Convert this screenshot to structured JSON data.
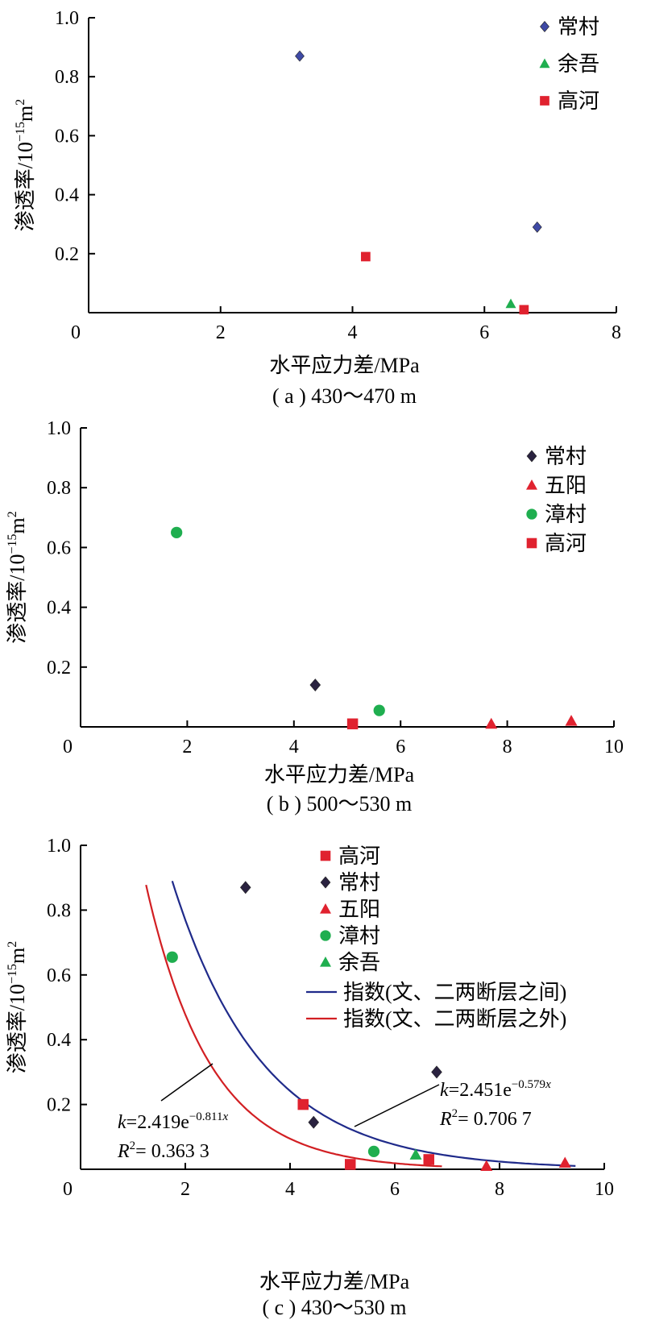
{
  "colors": {
    "changcun_a": "#3f4aa5",
    "changcun_dark": "#2a2240",
    "yuwu": "#1fae4f",
    "gaohe": "#e0222f",
    "wuyang": "#e0222f",
    "zhangcun": "#1fae4f",
    "fit_inside": "#1f2a8a",
    "fit_outside": "#d21f23"
  },
  "chart_data": [
    {
      "type": "scatter",
      "caption": "( a ) 430～470 m",
      "xlabel": "水平应力差/MPa",
      "ylabel": "渗透率/10",
      "ylabel_sup": "−15",
      "ylabel_unit": "m",
      "ylabel_unit_sup": "2",
      "xlim": [
        0,
        8
      ],
      "ylim": [
        0,
        1.0
      ],
      "xticks": [
        "0",
        "2",
        "4",
        "6",
        "8"
      ],
      "yticks": [
        "0.2",
        "0.4",
        "0.6",
        "0.8",
        "1.0"
      ],
      "legend_position": "top-right",
      "series": [
        {
          "name": "常村",
          "marker": "diamond",
          "color_key": "changcun_a",
          "points": [
            [
              3.2,
              0.87
            ],
            [
              6.8,
              0.29
            ]
          ]
        },
        {
          "name": "余吾",
          "marker": "triangle",
          "color_key": "yuwu",
          "points": [
            [
              6.4,
              0.03
            ]
          ]
        },
        {
          "name": "高河",
          "marker": "square",
          "color_key": "gaohe",
          "points": [
            [
              4.2,
              0.19
            ],
            [
              6.6,
              0.01
            ]
          ]
        }
      ]
    },
    {
      "type": "scatter",
      "caption": "( b ) 500～530 m",
      "xlabel": "水平应力差/MPa",
      "ylabel": "渗透率/10",
      "ylabel_sup": "−15",
      "ylabel_unit": "m",
      "ylabel_unit_sup": "2",
      "xlim": [
        0,
        10
      ],
      "ylim": [
        0,
        1.0
      ],
      "xticks": [
        "0",
        "2",
        "4",
        "6",
        "8",
        "10"
      ],
      "yticks": [
        "0.2",
        "0.4",
        "0.6",
        "0.8",
        "1.0"
      ],
      "legend_position": "top-right",
      "series": [
        {
          "name": "常村",
          "marker": "diamond",
          "color_key": "changcun_dark",
          "points": [
            [
              4.4,
              0.14
            ]
          ]
        },
        {
          "name": "五阳",
          "marker": "triangle",
          "color_key": "wuyang",
          "points": [
            [
              7.7,
              0.01
            ],
            [
              9.2,
              0.02
            ]
          ]
        },
        {
          "name": "漳村",
          "marker": "circle",
          "color_key": "zhangcun",
          "points": [
            [
              1.8,
              0.65
            ],
            [
              5.6,
              0.055
            ]
          ]
        },
        {
          "name": "高河",
          "marker": "square",
          "color_key": "gaohe",
          "points": [
            [
              5.1,
              0.01
            ]
          ]
        }
      ]
    },
    {
      "type": "scatter",
      "caption": "( c ) 430～530 m",
      "xlabel": "水平应力差/MPa",
      "ylabel": "渗透率/10",
      "ylabel_sup": "−15",
      "ylabel_unit": "m",
      "ylabel_unit_sup": "2",
      "xlim": [
        0,
        10
      ],
      "ylim": [
        0,
        1.0
      ],
      "xticks": [
        "0",
        "2",
        "4",
        "6",
        "8",
        "10"
      ],
      "yticks": [
        "0.2",
        "0.4",
        "0.6",
        "0.8",
        "1.0"
      ],
      "legend_position": "top-right",
      "series": [
        {
          "name": "高河",
          "marker": "square",
          "color_key": "gaohe",
          "points": [
            [
              4.25,
              0.2
            ],
            [
              5.15,
              0.015
            ],
            [
              6.65,
              0.03
            ]
          ]
        },
        {
          "name": "常村",
          "marker": "diamond",
          "color_key": "changcun_dark",
          "points": [
            [
              3.15,
              0.87
            ],
            [
              4.45,
              0.145
            ],
            [
              6.8,
              0.3
            ]
          ]
        },
        {
          "name": "五阳",
          "marker": "triangle",
          "color_key": "wuyang",
          "points": [
            [
              7.75,
              0.01
            ],
            [
              9.25,
              0.02
            ]
          ]
        },
        {
          "name": "漳村",
          "marker": "circle",
          "color_key": "zhangcun",
          "points": [
            [
              1.75,
              0.655
            ],
            [
              5.6,
              0.055
            ]
          ]
        },
        {
          "name": "余吾",
          "marker": "triangle",
          "color_key": "yuwu",
          "points": [
            [
              6.4,
              0.045
            ]
          ]
        }
      ],
      "fits": [
        {
          "name": "指数(文、二两断层之间)",
          "color_key": "fit_inside",
          "a": 2.451,
          "b": 0.579,
          "x_range": [
            1.75,
            9.45
          ],
          "eq_k": "k",
          "eq_mid": "=2.451e",
          "eq_exp": "−0.579",
          "eq_exp_var": "x",
          "r2_r": "R",
          "r2_sup": "2",
          "r2_rest": "= 0.706 7"
        },
        {
          "name": "指数(文、二两断层之外)",
          "color_key": "fit_outside",
          "a": 2.419,
          "b": 0.811,
          "x_range": [
            1.25,
            6.9
          ],
          "eq_k": "k",
          "eq_mid": "=2.419e",
          "eq_exp": "−0.811",
          "eq_exp_var": "x",
          "r2_r": "R",
          "r2_sup": "2",
          "r2_rest": "= 0.363 3"
        }
      ]
    }
  ]
}
